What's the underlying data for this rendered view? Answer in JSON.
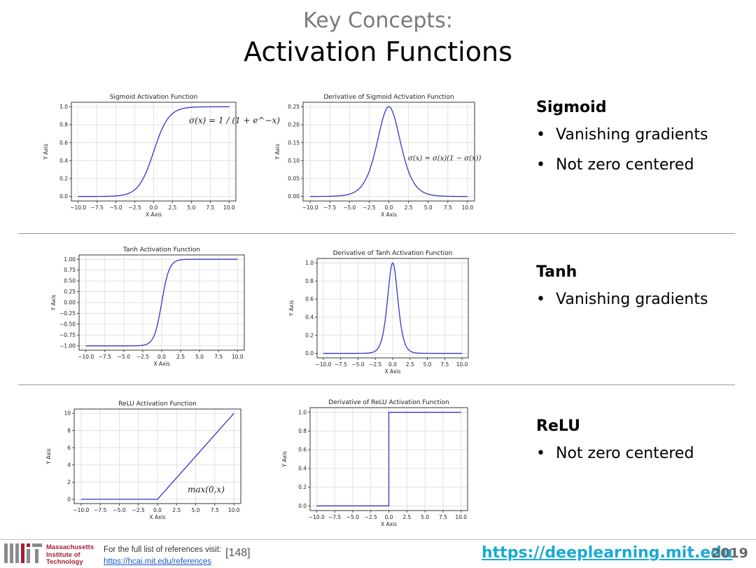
{
  "slide": {
    "kicker": "Key Concepts:",
    "title": "Activation Functions",
    "sections": [
      {
        "heading": "Sigmoid",
        "bullets": [
          "Vanishing gradients",
          "Not zero centered"
        ]
      },
      {
        "heading": "Tanh",
        "bullets": [
          "Vanishing gradients"
        ]
      },
      {
        "heading": "ReLU",
        "bullets": [
          "Not zero centered"
        ]
      }
    ]
  },
  "footer": {
    "institute": [
      "Massachusetts",
      "Institute of",
      "Technology"
    ],
    "ref_note": "For the full list of references visit:",
    "ref_link": "https://hcai.mit.edu/references",
    "ref_number": "[148]",
    "site": "https://deeplearning.mit.edu",
    "year": "2019"
  },
  "colors": {
    "line": "#3434c8",
    "grid": "#dcdcdc",
    "site": "#1ba9d6",
    "mit": "#a31f34"
  },
  "chart_data": [
    {
      "id": "sigmoid",
      "type": "line",
      "function": "sigmoid",
      "title": "Sigmoid Activation Function",
      "xlabel": "X Axis",
      "ylabel": "Y Axis",
      "xlim": [
        -10,
        10
      ],
      "ylim": [
        0,
        1
      ],
      "xticks": [
        -10,
        -7.5,
        -5,
        -2.5,
        0,
        2.5,
        5,
        7.5,
        10
      ],
      "yticks": [
        0,
        0.2,
        0.4,
        0.6,
        0.8,
        1.0
      ],
      "annotation": "σ(x) = 1 / (1 + e^−x)",
      "grid": true
    },
    {
      "id": "sigmoid-derivative",
      "type": "line",
      "function": "sigmoid_derivative",
      "title": "Derivative of Sigmoid Activation Function",
      "xlabel": "X Axis",
      "ylabel": "Y Axis",
      "xlim": [
        -10,
        10
      ],
      "ylim": [
        0,
        0.25
      ],
      "xticks": [
        -10,
        -7.5,
        -5,
        -2.5,
        0,
        2.5,
        5,
        7.5,
        10
      ],
      "yticks": [
        0,
        0.05,
        0.1,
        0.15,
        0.2,
        0.25
      ],
      "annotation": "σ(x) = σ(x)(1 − σ(x))",
      "grid": true
    },
    {
      "id": "tanh",
      "type": "line",
      "function": "tanh",
      "title": "Tanh Activation Function",
      "xlabel": "X Axis",
      "ylabel": "Y Axis",
      "xlim": [
        -10,
        10
      ],
      "ylim": [
        -1,
        1
      ],
      "xticks": [
        -10,
        -7.5,
        -5,
        -2.5,
        0,
        2.5,
        5,
        7.5,
        10
      ],
      "yticks": [
        -1,
        -0.75,
        -0.5,
        -0.25,
        0,
        0.25,
        0.5,
        0.75,
        1
      ],
      "grid": true
    },
    {
      "id": "tanh-derivative",
      "type": "line",
      "function": "tanh_derivative",
      "title": "Derivative of Tanh Activation Function",
      "xlabel": "X Axis",
      "ylabel": "Y Axis",
      "xlim": [
        -10,
        10
      ],
      "ylim": [
        0,
        1
      ],
      "xticks": [
        -10,
        -7.5,
        -5,
        -2.5,
        0,
        2.5,
        5,
        7.5,
        10
      ],
      "yticks": [
        0,
        0.2,
        0.4,
        0.6,
        0.8,
        1.0
      ],
      "grid": true
    },
    {
      "id": "relu",
      "type": "line",
      "function": "relu",
      "title": "ReLU Activation Function",
      "xlabel": "X Axis",
      "ylabel": "Y Axis",
      "xlim": [
        -10,
        10
      ],
      "ylim": [
        0,
        10
      ],
      "xticks": [
        -10,
        -7.5,
        -5,
        -2.5,
        0,
        2.5,
        5,
        7.5,
        10
      ],
      "yticks": [
        0,
        2,
        4,
        6,
        8,
        10
      ],
      "annotation": "max(0,x)",
      "grid": true
    },
    {
      "id": "relu-derivative",
      "type": "line",
      "function": "relu_derivative",
      "title": "Derivative of ReLU Activation Function",
      "xlabel": "X Axis",
      "ylabel": "Y Axis",
      "xlim": [
        -10,
        10
      ],
      "ylim": [
        0,
        1
      ],
      "xticks": [
        -10,
        -7.5,
        -5,
        -2.5,
        0,
        2.5,
        5,
        7.5,
        10
      ],
      "yticks": [
        0,
        0.2,
        0.4,
        0.6,
        0.8,
        1.0
      ],
      "grid": true
    }
  ]
}
